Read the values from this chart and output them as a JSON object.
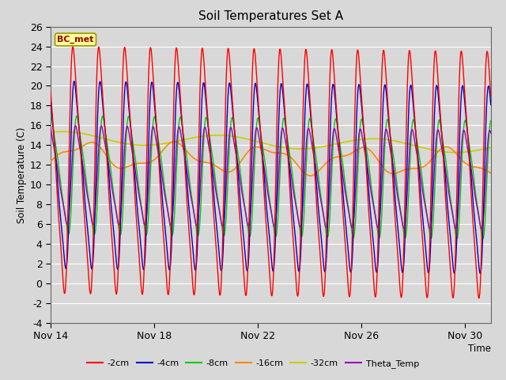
{
  "title": "Soil Temperatures Set A",
  "xlabel": "Time",
  "ylabel": "Soil Temperature (C)",
  "annotation": "BC_met",
  "ylim": [
    -4,
    26
  ],
  "yticks": [
    -4,
    -2,
    0,
    2,
    4,
    6,
    8,
    10,
    12,
    14,
    16,
    18,
    20,
    22,
    24,
    26
  ],
  "xtick_labels": [
    "Nov 14",
    "Nov 18",
    "Nov 22",
    "Nov 26",
    "Nov 30"
  ],
  "xtick_positions": [
    0,
    4,
    8,
    12,
    16
  ],
  "series_colors": {
    "-2cm": "#ff0000",
    "-4cm": "#0000cc",
    "-8cm": "#00cc00",
    "-16cm": "#ff8800",
    "-32cm": "#cccc00",
    "Theta_Temp": "#9900bb"
  },
  "bg_color": "#d8d8d8",
  "plot_bg_color": "#d8d8d8",
  "grid_color": "#ffffff",
  "n_days": 17,
  "samples_per_day": 96,
  "figwidth": 6.4,
  "figheight": 4.8,
  "dpi": 100
}
